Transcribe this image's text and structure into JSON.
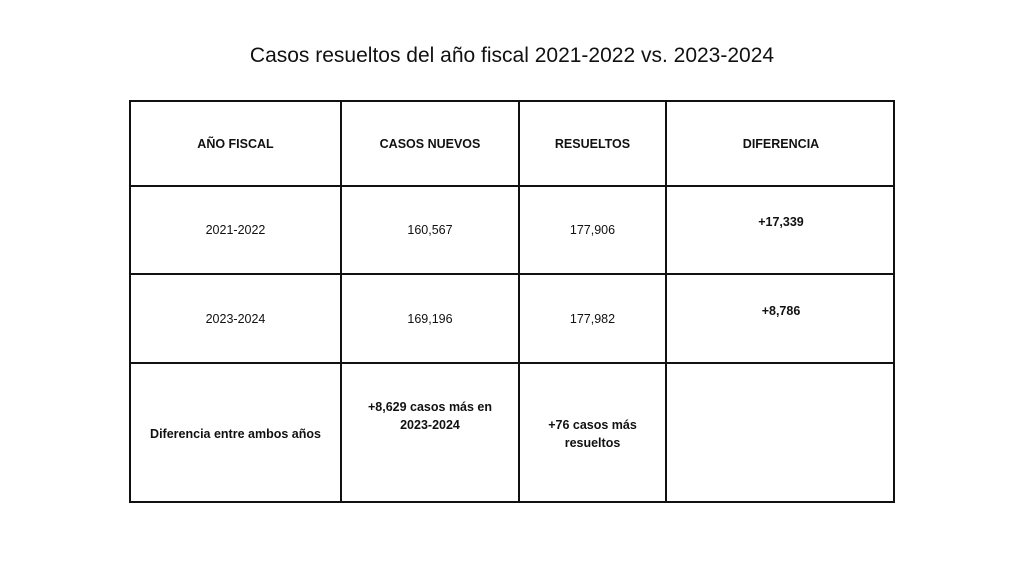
{
  "title": "Casos resueltos del año fiscal 2021-2022 vs. 2023-2024",
  "table": {
    "headers": [
      "AÑO FISCAL",
      "CASOS NUEVOS",
      "RESUELTOS",
      "DIFERENCIA"
    ],
    "rows": [
      [
        "2021-2022",
        "160,567",
        "177,906",
        "+17,339"
      ],
      [
        "2023-2024",
        "169,196",
        "177,982",
        "+8,786"
      ],
      [
        "Diferencia entre ambos años",
        "+8,629 casos más en 2023-2024",
        "+76 casos más resueltos",
        ""
      ]
    ]
  }
}
